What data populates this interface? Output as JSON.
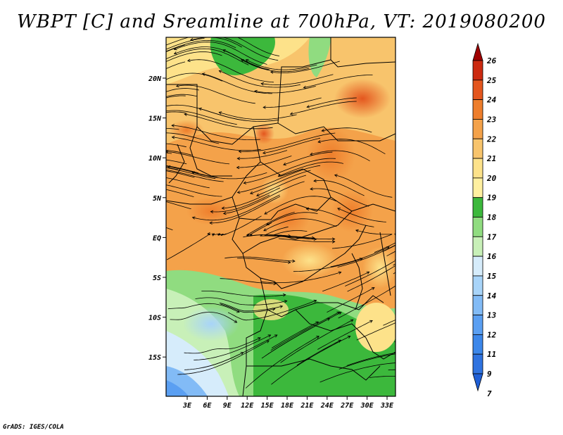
{
  "title": "WBPT [C] and Sreamline at 700hPa, VT: 2019080200",
  "credit": "GrADS: IGES/COLA",
  "map": {
    "lon_labels": [
      "3E",
      "6E",
      "9E",
      "12E",
      "15E",
      "18E",
      "21E",
      "24E",
      "27E",
      "30E",
      "33E"
    ],
    "lat_labels": [
      "20N",
      "15N",
      "10N",
      "5N",
      "EQ",
      "5S",
      "10S",
      "15S"
    ]
  },
  "colorbar": {
    "levels": [
      "7",
      "9",
      "11",
      "12",
      "13",
      "14",
      "15",
      "16",
      "17",
      "18",
      "19",
      "20",
      "21",
      "22",
      "23",
      "24",
      "25",
      "26"
    ],
    "colors": [
      "#1f5fd6",
      "#2f73e0",
      "#3c87ea",
      "#5a9ff2",
      "#82bbf6",
      "#a8d4f9",
      "#d6ecfb",
      "#c8f0b8",
      "#90dc80",
      "#3cb83c",
      "#fff0a0",
      "#fde28a",
      "#f8c46c",
      "#f4a24a",
      "#ee7e2c",
      "#e4561e",
      "#cc2a10",
      "#a00000"
    ]
  }
}
